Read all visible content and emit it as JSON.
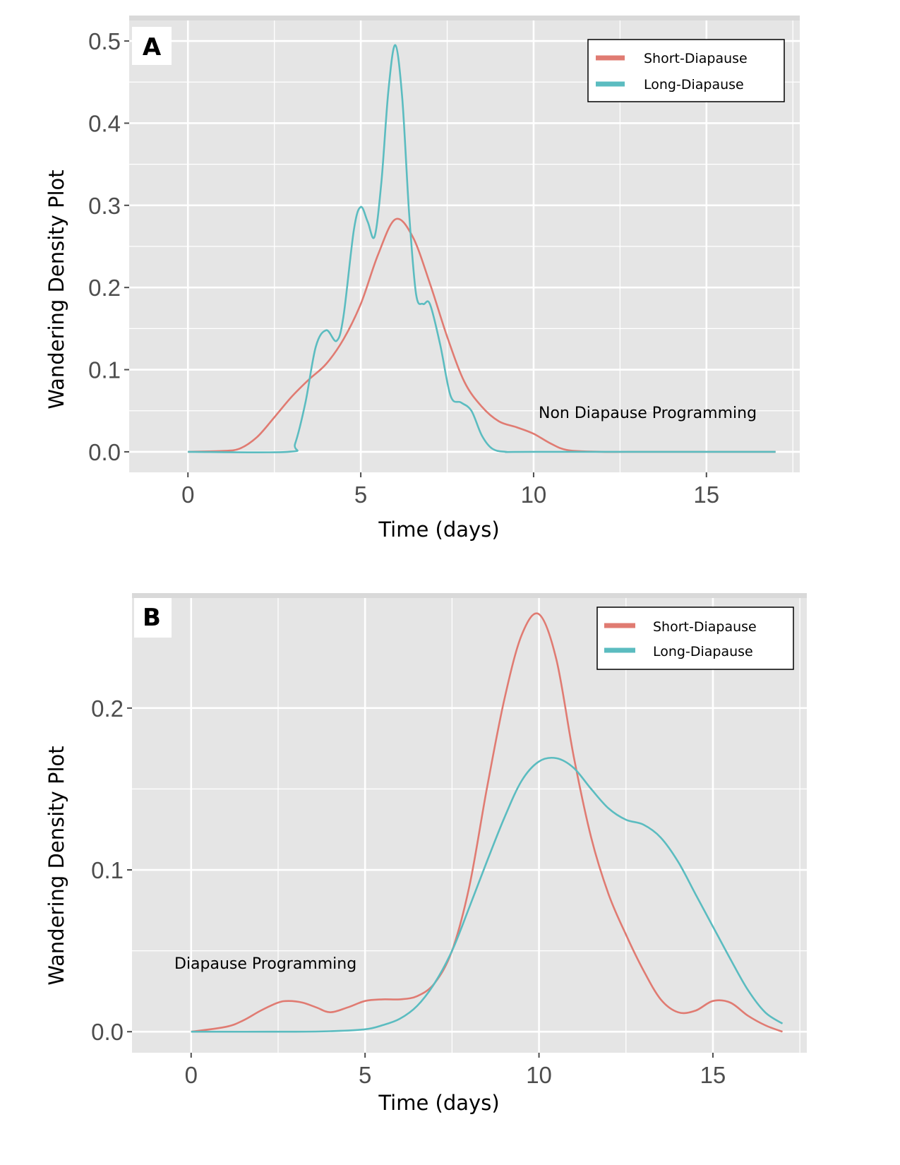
{
  "colors": {
    "short": "#E07B72",
    "long": "#5BBCC0",
    "panel_bg": "#E5E5E5",
    "grid": "#FFFFFF",
    "tick": "#4d4d4d"
  },
  "chart_data": [
    {
      "panel": "A",
      "type": "line",
      "xlabel": "Time (days)",
      "ylabel": "Wandering Density Plot",
      "xlim": [
        -1.7,
        17.7
      ],
      "ylim": [
        -0.025,
        0.525
      ],
      "x_ticks": [
        0,
        5,
        10,
        15
      ],
      "x_tick_labels": [
        "0",
        "5",
        "10",
        "15"
      ],
      "y_ticks": [
        0,
        0.1,
        0.2,
        0.3,
        0.4,
        0.5
      ],
      "y_tick_labels": [
        "0.0",
        "0.1",
        "0.2",
        "0.3",
        "0.4",
        "0.5"
      ],
      "grid": true,
      "legend_position": "top-right",
      "annotation": "Non Diapause Programming",
      "series": [
        {
          "name": "Short-Diapause",
          "color_key": "short",
          "x": [
            0,
            1,
            1.5,
            2,
            2.5,
            3,
            3.5,
            4,
            4.5,
            5,
            5.5,
            6,
            6.5,
            7,
            7.5,
            8,
            8.5,
            9,
            9.5,
            10,
            10.5,
            11,
            12,
            13,
            14,
            15,
            16,
            17
          ],
          "y": [
            0,
            0.001,
            0.004,
            0.018,
            0.042,
            0.067,
            0.088,
            0.107,
            0.137,
            0.18,
            0.24,
            0.283,
            0.262,
            0.205,
            0.14,
            0.085,
            0.055,
            0.037,
            0.03,
            0.022,
            0.01,
            0.002,
            0,
            0,
            0,
            0,
            0,
            0
          ]
        },
        {
          "name": "Long-Diapause",
          "color_key": "long",
          "x": [
            0,
            2.9,
            3.1,
            3.4,
            3.7,
            4,
            4.3,
            4.5,
            4.8,
            5,
            5.2,
            5.4,
            5.6,
            5.8,
            6,
            6.2,
            6.4,
            6.6,
            6.8,
            7,
            7.3,
            7.6,
            7.9,
            8.2,
            8.5,
            8.8,
            9.2,
            10,
            17
          ],
          "y": [
            0,
            0,
            0.01,
            0.06,
            0.128,
            0.148,
            0.135,
            0.165,
            0.27,
            0.298,
            0.28,
            0.262,
            0.33,
            0.44,
            0.495,
            0.43,
            0.29,
            0.192,
            0.18,
            0.18,
            0.13,
            0.068,
            0.06,
            0.05,
            0.02,
            0.004,
            0,
            0,
            0
          ]
        }
      ]
    },
    {
      "panel": "B",
      "type": "line",
      "xlabel": "Time (days)",
      "ylabel": "Wandering Density Plot",
      "xlim": [
        -1.7,
        17.7
      ],
      "ylim": [
        -0.013,
        0.268
      ],
      "x_ticks": [
        0,
        5,
        10,
        15
      ],
      "x_tick_labels": [
        "0",
        "5",
        "10",
        "15"
      ],
      "y_ticks": [
        0,
        0.1,
        0.2
      ],
      "y_tick_labels": [
        "0.0",
        "0.1",
        "0.2"
      ],
      "grid": true,
      "legend_position": "top-right",
      "annotation": "Diapause Programming",
      "series": [
        {
          "name": "Short-Diapause",
          "color_key": "short",
          "x": [
            0,
            1,
            1.5,
            2,
            2.5,
            2.8,
            3.2,
            3.6,
            4,
            4.5,
            5,
            5.5,
            6,
            6.5,
            7,
            7.5,
            8,
            8.5,
            9,
            9.5,
            10,
            10.5,
            11,
            11.5,
            12,
            12.5,
            13,
            13.5,
            14,
            14.5,
            15,
            15.5,
            16,
            16.5,
            17
          ],
          "y": [
            0,
            0.003,
            0.007,
            0.013,
            0.018,
            0.019,
            0.018,
            0.015,
            0.012,
            0.015,
            0.019,
            0.02,
            0.02,
            0.022,
            0.03,
            0.05,
            0.09,
            0.15,
            0.205,
            0.245,
            0.258,
            0.23,
            0.17,
            0.12,
            0.085,
            0.06,
            0.038,
            0.02,
            0.012,
            0.013,
            0.019,
            0.018,
            0.01,
            0.004,
            0
          ]
        },
        {
          "name": "Long-Diapause",
          "color_key": "long",
          "x": [
            0,
            3,
            4,
            5,
            5.5,
            6,
            6.5,
            7,
            7.5,
            8,
            8.5,
            9,
            9.5,
            10,
            10.5,
            11,
            11.5,
            12,
            12.5,
            13,
            13.5,
            14,
            14.5,
            15,
            15.5,
            16,
            16.5,
            17
          ],
          "y": [
            0,
            0,
            0.0003,
            0.0015,
            0.004,
            0.008,
            0.016,
            0.03,
            0.05,
            0.077,
            0.105,
            0.132,
            0.155,
            0.167,
            0.169,
            0.163,
            0.15,
            0.138,
            0.131,
            0.128,
            0.12,
            0.105,
            0.085,
            0.065,
            0.045,
            0.026,
            0.012,
            0.005
          ]
        }
      ]
    }
  ]
}
